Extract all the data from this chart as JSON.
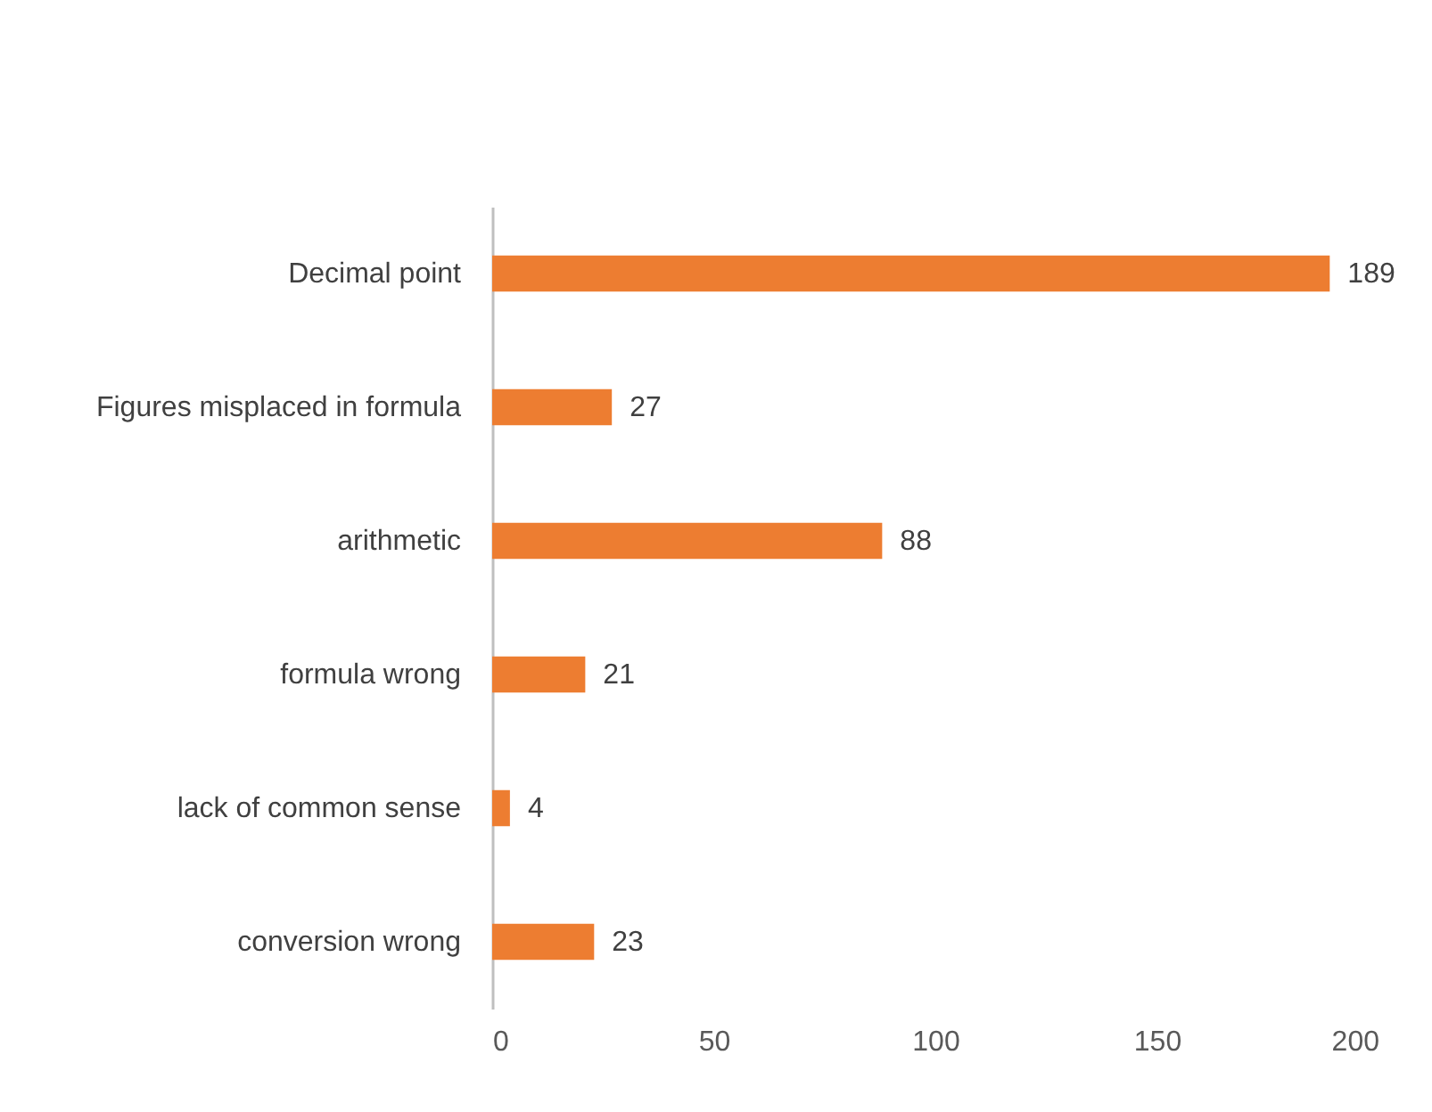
{
  "chart_data": {
    "type": "bar",
    "orientation": "horizontal",
    "categories": [
      "Decimal point",
      "Figures misplaced in formula",
      "arithmetic",
      "formula wrong",
      "lack of common sense",
      "conversion wrong"
    ],
    "values": [
      189,
      27,
      88,
      21,
      4,
      23
    ],
    "color": "#ed7d31",
    "xlim": [
      0,
      200
    ],
    "xticks": [
      0,
      50,
      100,
      150,
      200
    ],
    "grid": false,
    "data_labels": true
  }
}
